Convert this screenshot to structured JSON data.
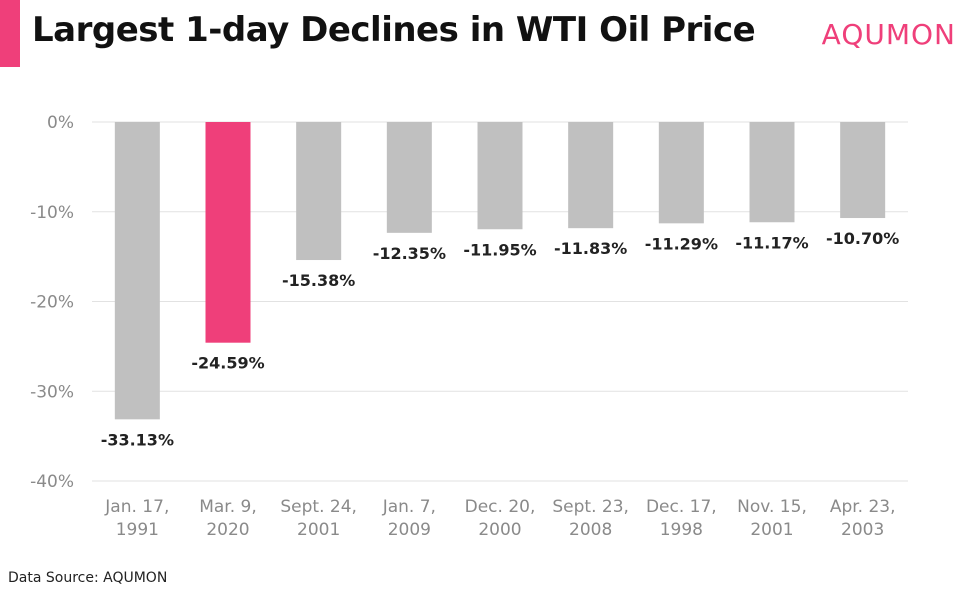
{
  "header": {
    "title": "Largest 1-day Declines in WTI Oil Price",
    "brand": "AQUMON"
  },
  "footer": {
    "source": "Data Source: AQUMON"
  },
  "colors": {
    "accent": "#ef3f7a",
    "bar_default": "#c0c0c0",
    "bar_highlight": "#ef3f7a",
    "grid": "#e2e2e2",
    "tick_text": "#8a8a8a",
    "value_text": "#222222"
  },
  "chart_data": {
    "type": "bar",
    "categories": [
      [
        "Jan. 17,",
        "1991"
      ],
      [
        "Mar. 9,",
        "2020"
      ],
      [
        "Sept. 24,",
        "2001"
      ],
      [
        "Jan. 7,",
        "2009"
      ],
      [
        "Dec. 20,",
        "2000"
      ],
      [
        "Sept. 23,",
        "2008"
      ],
      [
        "Dec. 17,",
        "1998"
      ],
      [
        "Nov. 15,",
        "2001"
      ],
      [
        "Apr. 23,",
        "2003"
      ]
    ],
    "values": [
      -33.13,
      -24.59,
      -15.38,
      -12.35,
      -11.95,
      -11.83,
      -11.29,
      -11.17,
      -10.7
    ],
    "value_labels": [
      "-33.13%",
      "-24.59%",
      "-15.38%",
      "-12.35%",
      "-11.95%",
      "-11.83%",
      "-11.29%",
      "-11.17%",
      "-10.70%"
    ],
    "highlight_index": 1,
    "ylim": [
      -40,
      0
    ],
    "yticks": [
      0,
      -10,
      -20,
      -30,
      -40
    ],
    "ytick_labels": [
      "0%",
      "-10%",
      "-20%",
      "-30%",
      "-40%"
    ],
    "grid": true,
    "legend": "none"
  }
}
